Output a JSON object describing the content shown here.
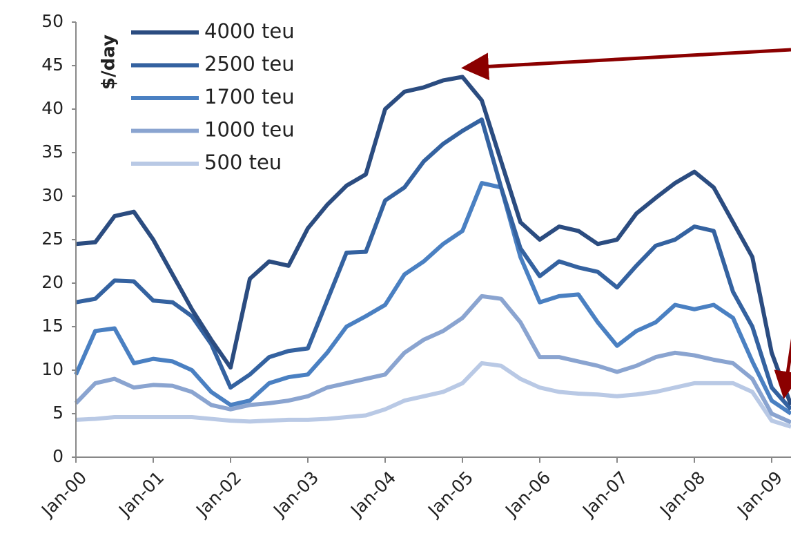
{
  "chart_data": {
    "type": "line",
    "y_label": "$/day",
    "categories": [
      "Jan-00",
      null,
      null,
      null,
      "Jan-01",
      null,
      null,
      null,
      "Jan-02",
      null,
      null,
      null,
      "Jan-03",
      null,
      null,
      null,
      "Jan-04",
      null,
      null,
      null,
      "Jan-05",
      null,
      null,
      null,
      "Jan-06",
      null,
      null,
      null,
      "Jan-07",
      null,
      null,
      null,
      "Jan-08",
      null,
      null,
      null,
      "Jan-09",
      null
    ],
    "series": [
      {
        "name": "4000 teu",
        "color": "#2b4c80",
        "values": [
          24.5,
          24.7,
          27.7,
          28.2,
          25,
          21,
          17,
          13.5,
          10.3,
          20.5,
          22.5,
          22,
          26.3,
          29,
          31.2,
          32.5,
          40,
          42,
          42.5,
          43.3,
          43.7,
          41,
          34,
          27,
          25,
          26.5,
          26,
          24.5,
          25,
          28,
          29.8,
          31.5,
          32.8,
          31,
          27,
          23,
          12,
          6
        ]
      },
      {
        "name": "2500 teu",
        "color": "#3462a0",
        "values": [
          17.8,
          18.2,
          20.3,
          20.2,
          18,
          17.8,
          16.2,
          13,
          8,
          9.5,
          11.5,
          12.2,
          12.5,
          18,
          23.5,
          23.6,
          29.5,
          31,
          34,
          36,
          37.5,
          38.8,
          31,
          24,
          20.8,
          22.5,
          21.8,
          21.3,
          19.5,
          22,
          24.3,
          25,
          26.5,
          26,
          19,
          15,
          8,
          5.5
        ]
      },
      {
        "name": "1700 teu",
        "color": "#4a80c2",
        "values": [
          9.5,
          14.5,
          14.8,
          10.8,
          11.3,
          11,
          10,
          7.5,
          6,
          6.5,
          8.5,
          9.2,
          9.5,
          12,
          15,
          16.2,
          17.5,
          21,
          22.5,
          24.5,
          26,
          31.5,
          31,
          23,
          17.8,
          18.5,
          18.7,
          15.5,
          12.8,
          14.5,
          15.5,
          17.5,
          17,
          17.5,
          16,
          11,
          6.5,
          5
        ]
      },
      {
        "name": "1000 teu",
        "color": "#8aa4d0",
        "values": [
          6.2,
          8.5,
          9,
          8,
          8.3,
          8.2,
          7.5,
          6,
          5.5,
          6,
          6.2,
          6.5,
          7,
          8,
          8.5,
          9,
          9.5,
          12,
          13.5,
          14.5,
          16,
          18.5,
          18.2,
          15.5,
          11.5,
          11.5,
          11,
          10.5,
          9.8,
          10.5,
          11.5,
          12,
          11.7,
          11.2,
          10.8,
          9,
          5,
          4
        ]
      },
      {
        "name": "500 teu",
        "color": "#b9c9e5",
        "values": [
          4.3,
          4.4,
          4.6,
          4.6,
          4.6,
          4.6,
          4.6,
          4.4,
          4.2,
          4.1,
          4.2,
          4.3,
          4.3,
          4.4,
          4.6,
          4.8,
          5.5,
          6.5,
          7,
          7.5,
          8.5,
          10.8,
          10.5,
          9,
          8,
          7.5,
          7.3,
          7.2,
          7,
          7.2,
          7.5,
          8,
          8.5,
          8.5,
          8.5,
          7.5,
          4.2,
          3.5
        ]
      }
    ],
    "ylim": [
      0,
      50
    ],
    "yticks": [
      0,
      5,
      10,
      15,
      20,
      25,
      30,
      35,
      40,
      45,
      50
    ],
    "grid": false,
    "legend": "upper left"
  }
}
